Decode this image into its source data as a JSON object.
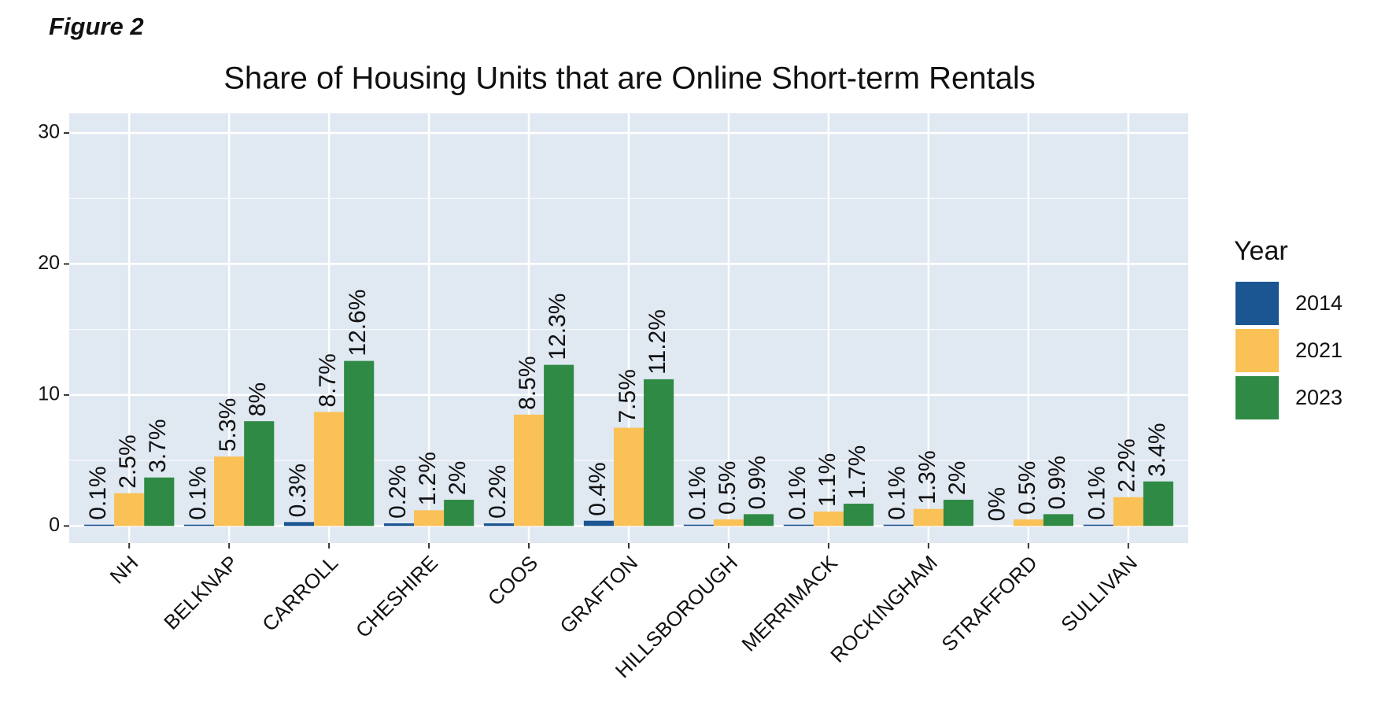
{
  "figure_label": "Figure 2",
  "chart_data": {
    "type": "bar",
    "title": "Share of Housing Units that are Online Short-term Rentals",
    "categories": [
      "NH",
      "BELKNAP",
      "CARROLL",
      "CHESHIRE",
      "COOS",
      "GRAFTON",
      "HILLSBOROUGH",
      "MERRIMACK",
      "ROCKINGHAM",
      "STRAFFORD",
      "SULLIVAN"
    ],
    "series": [
      {
        "name": "2014",
        "color": "#1b5592",
        "values": [
          0.1,
          0.1,
          0.3,
          0.2,
          0.2,
          0.4,
          0.1,
          0.1,
          0.1,
          0,
          0.1
        ],
        "value_labels": [
          "0.1%",
          "0.1%",
          "0.3%",
          "0.2%",
          "0.2%",
          "0.4%",
          "0.1%",
          "0.1%",
          "0.1%",
          "0%",
          "0.1%"
        ]
      },
      {
        "name": "2021",
        "color": "#f9c156",
        "values": [
          2.5,
          5.3,
          8.7,
          1.2,
          8.5,
          7.5,
          0.5,
          1.1,
          1.3,
          0.5,
          2.2
        ],
        "value_labels": [
          "2.5%",
          "5.3%",
          "8.7%",
          "1.2%",
          "8.5%",
          "7.5%",
          "0.5%",
          "1.1%",
          "1.3%",
          "0.5%",
          "2.2%"
        ]
      },
      {
        "name": "2023",
        "color": "#2e8a44",
        "values": [
          3.7,
          8,
          12.6,
          2,
          12.3,
          11.2,
          0.9,
          1.7,
          2,
          0.9,
          3.4
        ],
        "value_labels": [
          "3.7%",
          "8%",
          "12.6%",
          "2%",
          "12.3%",
          "11.2%",
          "0.9%",
          "1.7%",
          "2%",
          "0.9%",
          "3.4%"
        ]
      }
    ],
    "legend_title": "Year",
    "legend_position": "right",
    "ylim": [
      -1.3,
      31.5
    ],
    "yticks": [
      0,
      10,
      20,
      30
    ],
    "grid": true
  }
}
